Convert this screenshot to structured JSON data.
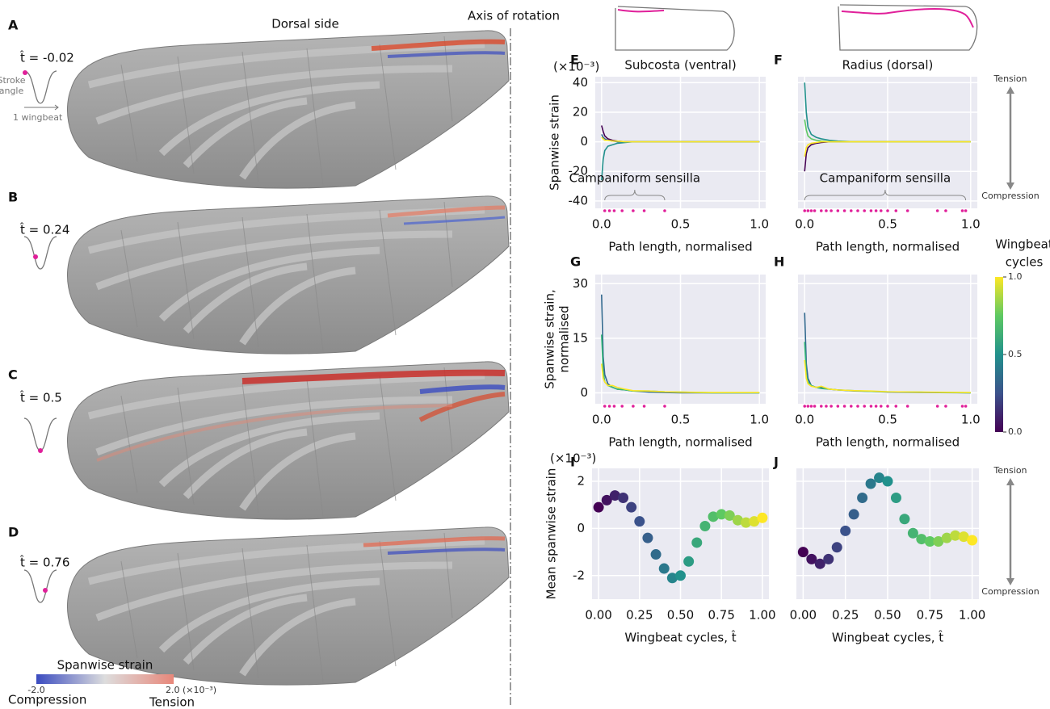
{
  "figure": {
    "panels": [
      {
        "label": "A",
        "t_hat": "t̂ = -0.02"
      },
      {
        "label": "B",
        "t_hat": "t̂ = 0.24"
      },
      {
        "label": "C",
        "t_hat": "t̂ = 0.5"
      },
      {
        "label": "D",
        "t_hat": "t̂ = 0.76"
      }
    ],
    "stroke_angle_label": [
      "Stroke",
      "angle"
    ],
    "wingbeat_label": "1 wingbeat",
    "dorsal_side": "Dorsal side",
    "axis_of_rotation": "Axis of rotation",
    "strain_colorbar": {
      "title": "Spanwise strain",
      "min": "-2.0",
      "max": "2.0 (×10⁻³)",
      "low": "Compression",
      "high": "Tension"
    },
    "wingbeat_colorbar": {
      "title": [
        "Wingbeat",
        "cycles"
      ],
      "ticks": [
        {
          "value": 0,
          "label": "0.0"
        },
        {
          "value": 0.5,
          "label": "0.5"
        },
        {
          "value": 1,
          "label": "1.0"
        }
      ]
    },
    "strain_arrows": [
      {
        "top": "Tension",
        "bottom": "Compression"
      },
      {
        "top": "Tension",
        "bottom": "Compression"
      }
    ]
  },
  "chart_data": [
    {
      "type": "line",
      "panel": "E",
      "title": "Subcosta (ventral)",
      "multiplier": "(×10⁻³)",
      "y_label": [
        "Spanwise strain"
      ],
      "x_label": "Path length, normalised",
      "xlim": [
        -0.04,
        1.04
      ],
      "ylim": [
        -45,
        44
      ],
      "xticks": [
        {
          "value": 0,
          "label": "0.0"
        },
        0.5,
        {
          "value": 1,
          "label": "1.0"
        }
      ],
      "yticks": [
        -40,
        -20,
        0,
        20,
        40
      ],
      "grid": true,
      "x": [
        0,
        0.01,
        0.02,
        0.04,
        0.07,
        0.1,
        0.15,
        0.2,
        0.3,
        0.4,
        0.5,
        0.7,
        1.0
      ],
      "series": [
        {
          "color": "#440154",
          "values": [
            11,
            7,
            4,
            2,
            1,
            0.5,
            0,
            0,
            0,
            0,
            0,
            0,
            0
          ]
        },
        {
          "color": "#31688e",
          "values": [
            5,
            3,
            2,
            1,
            0.5,
            0,
            0,
            0,
            0,
            0,
            0,
            0,
            0
          ]
        },
        {
          "color": "#21918c",
          "values": [
            -26,
            -12,
            -6,
            -3,
            -2,
            -1,
            -0.5,
            0,
            0,
            0,
            0,
            0,
            0
          ]
        },
        {
          "color": "#fde725",
          "values": [
            3,
            2,
            1,
            1,
            0.5,
            0.5,
            0,
            0,
            0,
            0,
            0,
            0,
            0
          ]
        }
      ],
      "sensilla_x": [
        0.02,
        0.05,
        0.08,
        0.13,
        0.2,
        0.27,
        0.4
      ],
      "annotation": "Campaniform sensilla"
    },
    {
      "type": "line",
      "panel": "F",
      "title": "Radius (dorsal)",
      "x_label": "Path length, normalised",
      "xlim": [
        -0.04,
        1.04
      ],
      "ylim": [
        -45,
        44
      ],
      "xticks": [
        {
          "value": 0,
          "label": "0.0"
        },
        0.5,
        {
          "value": 1,
          "label": "1.0"
        }
      ],
      "grid": true,
      "x": [
        0,
        0.01,
        0.02,
        0.04,
        0.07,
        0.1,
        0.15,
        0.2,
        0.3,
        0.4,
        0.5,
        0.7,
        1.0
      ],
      "series": [
        {
          "color": "#440154",
          "values": [
            -20,
            -8,
            -4,
            -2,
            -1,
            -0.5,
            0,
            0,
            0,
            0,
            0,
            0,
            0
          ]
        },
        {
          "color": "#21918c",
          "values": [
            40,
            20,
            10,
            5,
            3,
            2,
            1,
            0.5,
            0,
            0,
            0,
            0,
            0
          ]
        },
        {
          "color": "#5ec962",
          "values": [
            15,
            8,
            4,
            2,
            1,
            0.5,
            0,
            0,
            0,
            0,
            0,
            0,
            0
          ]
        },
        {
          "color": "#fde725",
          "values": [
            -10,
            -4,
            -2,
            -1,
            -0.5,
            0,
            0,
            0,
            0,
            0,
            0,
            0,
            0
          ]
        }
      ],
      "sensilla_x": [
        0.0,
        0.02,
        0.04,
        0.06,
        0.1,
        0.13,
        0.16,
        0.2,
        0.24,
        0.28,
        0.32,
        0.36,
        0.4,
        0.43,
        0.46,
        0.5,
        0.55,
        0.62,
        0.8,
        0.85,
        0.95,
        0.97
      ],
      "annotation": "Campaniform sensilla"
    },
    {
      "type": "line",
      "panel": "G",
      "y_label": [
        "Spanwise strain,",
        "normalised"
      ],
      "x_label": "Path length, normalised",
      "xlim": [
        -0.04,
        1.04
      ],
      "ylim": [
        -3,
        32.5
      ],
      "xticks": [
        {
          "value": 0,
          "label": "0.0"
        },
        0.5,
        {
          "value": 1,
          "label": "1.0"
        }
      ],
      "yticks": [
        0,
        15,
        30
      ],
      "grid": true,
      "x": [
        0,
        0.01,
        0.02,
        0.04,
        0.07,
        0.1,
        0.15,
        0.2,
        0.3,
        0.4,
        0.5,
        0.7,
        1.0
      ],
      "series": [
        {
          "color": "#31688e",
          "values": [
            27,
            10,
            5,
            2.5,
            1.5,
            1,
            0.8,
            0.5,
            0.2,
            0.1,
            0,
            0,
            0
          ]
        },
        {
          "color": "#35b779",
          "values": [
            16,
            6,
            3,
            2,
            1.5,
            1,
            0.8,
            0.5,
            0.5,
            0.3,
            0.2,
            0,
            0
          ]
        },
        {
          "color": "#fde725",
          "values": [
            8,
            4,
            3,
            2,
            2,
            1.5,
            1,
            0.6,
            0.5,
            0.3,
            0.2,
            0.1,
            0.1
          ]
        }
      ],
      "sensilla_x": [
        0.02,
        0.05,
        0.08,
        0.13,
        0.2,
        0.27,
        0.4
      ]
    },
    {
      "type": "line",
      "panel": "H",
      "x_label": "Path length, normalised",
      "xlim": [
        -0.04,
        1.04
      ],
      "ylim": [
        -3,
        32.5
      ],
      "xticks": [
        {
          "value": 0,
          "label": "0.0"
        },
        0.5,
        {
          "value": 1,
          "label": "1.0"
        }
      ],
      "grid": true,
      "x": [
        0,
        0.01,
        0.02,
        0.04,
        0.07,
        0.1,
        0.15,
        0.2,
        0.3,
        0.4,
        0.5,
        0.7,
        1.0
      ],
      "series": [
        {
          "color": "#31688e",
          "values": [
            22,
            8,
            4,
            2,
            1.5,
            1.5,
            1,
            0.8,
            0.5,
            0.4,
            0.2,
            0.1,
            0
          ]
        },
        {
          "color": "#35b779",
          "values": [
            14,
            5,
            3,
            2,
            1.5,
            1.2,
            1,
            0.8,
            0.6,
            0.4,
            0.3,
            0.2,
            0
          ]
        },
        {
          "color": "#fde725",
          "values": [
            9,
            4,
            2.5,
            1.8,
            1.5,
            1.8,
            1,
            0.8,
            0.6,
            0.5,
            0.3,
            0.2,
            0.1
          ]
        }
      ],
      "sensilla_x": [
        0.0,
        0.02,
        0.04,
        0.06,
        0.1,
        0.13,
        0.16,
        0.2,
        0.24,
        0.28,
        0.32,
        0.36,
        0.4,
        0.43,
        0.46,
        0.5,
        0.55,
        0.62,
        0.8,
        0.85,
        0.95,
        0.97
      ]
    },
    {
      "type": "scatter",
      "panel": "I",
      "multiplier": "(×10⁻³)",
      "y_label": [
        "Mean spanwise strain"
      ],
      "x_label": "Wingbeat cycles, t̂",
      "colormap": "viridis",
      "xlim": [
        -0.04,
        1.04
      ],
      "ylim": [
        -3,
        2.55
      ],
      "xticks": [
        {
          "value": 0,
          "label": "0.00"
        },
        0.25,
        {
          "value": 0.5,
          "label": "0.50"
        },
        0.75,
        {
          "value": 1,
          "label": "1.00"
        }
      ],
      "yticks": [
        -2,
        0,
        2
      ],
      "grid": true,
      "x": [
        0,
        0.05,
        0.1,
        0.15,
        0.2,
        0.25,
        0.3,
        0.35,
        0.4,
        0.45,
        0.5,
        0.55,
        0.6,
        0.65,
        0.7,
        0.75,
        0.8,
        0.85,
        0.9,
        0.95,
        1.0
      ],
      "values": [
        0.9,
        1.2,
        1.4,
        1.3,
        0.9,
        0.3,
        -0.4,
        -1.1,
        -1.7,
        -2.1,
        -2.0,
        -1.4,
        -0.6,
        0.1,
        0.5,
        0.6,
        0.55,
        0.35,
        0.25,
        0.3,
        0.45
      ]
    },
    {
      "type": "scatter",
      "panel": "J",
      "x_label": "Wingbeat cycles, t̂",
      "colormap": "viridis",
      "xlim": [
        -0.04,
        1.04
      ],
      "ylim": [
        -3,
        2.55
      ],
      "xticks": [
        {
          "value": 0,
          "label": "0.00"
        },
        0.25,
        {
          "value": 0.5,
          "label": "0.50"
        },
        0.75,
        {
          "value": 1,
          "label": "1.00"
        }
      ],
      "grid": true,
      "x": [
        0,
        0.05,
        0.1,
        0.15,
        0.2,
        0.25,
        0.3,
        0.35,
        0.4,
        0.45,
        0.5,
        0.55,
        0.6,
        0.65,
        0.7,
        0.75,
        0.8,
        0.85,
        0.9,
        0.95,
        1.0
      ],
      "values": [
        -1.0,
        -1.3,
        -1.5,
        -1.3,
        -0.8,
        -0.1,
        0.6,
        1.3,
        1.9,
        2.15,
        2.0,
        1.3,
        0.4,
        -0.2,
        -0.45,
        -0.55,
        -0.55,
        -0.4,
        -0.3,
        -0.35,
        -0.5
      ]
    }
  ]
}
